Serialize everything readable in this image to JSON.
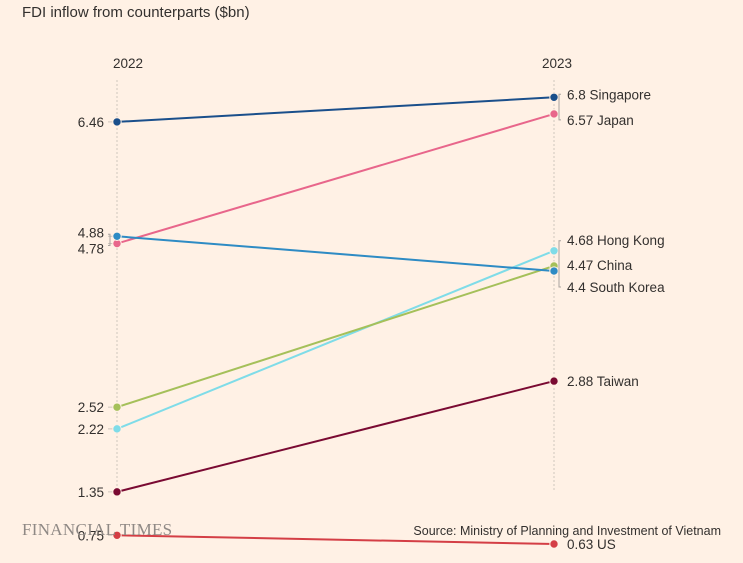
{
  "title": "FDI inflow from counterparts ($bn)",
  "footer": {
    "brand": "FINANCIAL TIMES",
    "source": "Source: Ministry of Planning and Investment of Vietnam"
  },
  "chart_data": {
    "type": "line",
    "subtype": "slope",
    "x": [
      "2022",
      "2023"
    ],
    "left_tick_labels": [
      "6.46",
      "4.88",
      "4.78",
      "2.52",
      "2.22",
      "1.35",
      "0.75"
    ],
    "grid": false,
    "series": [
      {
        "name": "Singapore",
        "values": [
          6.46,
          6.8
        ],
        "label": "6.8 Singapore",
        "color": "#1A4F8B"
      },
      {
        "name": "Japan",
        "values": [
          4.78,
          6.57
        ],
        "label": "6.57 Japan",
        "color": "#E8668B"
      },
      {
        "name": "Hong Kong",
        "values": [
          2.22,
          4.68
        ],
        "label": "4.68 Hong Kong",
        "color": "#7FDCE8"
      },
      {
        "name": "China",
        "values": [
          2.52,
          4.47
        ],
        "label": "4.47 China",
        "color": "#A5C05A"
      },
      {
        "name": "South Korea",
        "values": [
          4.88,
          4.4
        ],
        "label": "4.4 South Korea",
        "color": "#2E8BC4"
      },
      {
        "name": "Taiwan",
        "values": [
          1.35,
          2.88
        ],
        "label": "2.88 Taiwan",
        "color": "#7A0A32"
      },
      {
        "name": "US",
        "values": [
          0.75,
          0.63
        ],
        "label": "0.63 US",
        "color": "#D43E45"
      }
    ]
  }
}
